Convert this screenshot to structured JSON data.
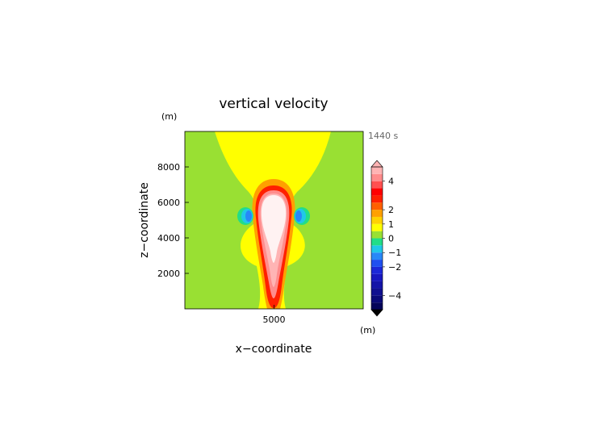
{
  "chart_data": {
    "type": "heatmap",
    "title": "vertical velocity",
    "xlabel": "x−coordinate",
    "ylabel": "z−coordinate",
    "x_unit": "(m)",
    "y_unit": "(m)",
    "time_label": "1440 s",
    "xlim": [
      0,
      10000
    ],
    "ylim": [
      0,
      10000
    ],
    "x_ticks": [
      {
        "value": 5000,
        "label": "5000"
      }
    ],
    "y_ticks": [
      {
        "value": 2000,
        "label": "2000"
      },
      {
        "value": 4000,
        "label": "4000"
      },
      {
        "value": 6000,
        "label": "6000"
      },
      {
        "value": 8000,
        "label": "8000"
      }
    ],
    "colorbar": {
      "min": -5,
      "max": 5,
      "step": 0.5,
      "extend": "both",
      "tick_values": [
        4,
        2,
        1,
        0,
        -1,
        -2,
        -4
      ],
      "tick_labels": [
        "4",
        "2",
        "1",
        "0",
        "−1",
        "−2",
        "−4"
      ]
    }
  },
  "colors": {
    "neutral_green": "#99e033",
    "plume_core": "#fff2f2",
    "levels": [
      {
        "from": -5.0,
        "to": -4.5,
        "color": "#04045a"
      },
      {
        "from": -4.5,
        "to": -4.0,
        "color": "#0a0a78"
      },
      {
        "from": -4.0,
        "to": -3.5,
        "color": "#101090"
      },
      {
        "from": -3.5,
        "to": -3.0,
        "color": "#1414a8"
      },
      {
        "from": -3.0,
        "to": -2.5,
        "color": "#1818c0"
      },
      {
        "from": -2.5,
        "to": -2.0,
        "color": "#1c28d8"
      },
      {
        "from": -2.0,
        "to": -1.5,
        "color": "#2050f0"
      },
      {
        "from": -1.5,
        "to": -1.0,
        "color": "#2888f8"
      },
      {
        "from": -1.0,
        "to": -0.5,
        "color": "#20c8e8"
      },
      {
        "from": -0.5,
        "to": 0.0,
        "color": "#22dd88"
      },
      {
        "from": 0.0,
        "to": 0.5,
        "color": "#99e033"
      },
      {
        "from": 0.5,
        "to": 1.0,
        "color": "#ffff00"
      },
      {
        "from": 1.0,
        "to": 1.5,
        "color": "#ffd200"
      },
      {
        "from": 1.5,
        "to": 2.0,
        "color": "#ffa000"
      },
      {
        "from": 2.0,
        "to": 2.5,
        "color": "#ff6000"
      },
      {
        "from": 2.5,
        "to": 3.0,
        "color": "#ff2000"
      },
      {
        "from": 3.0,
        "to": 3.5,
        "color": "#ff0000"
      },
      {
        "from": 3.5,
        "to": 4.0,
        "color": "#ff5050"
      },
      {
        "from": 4.0,
        "to": 4.5,
        "color": "#ff8c8c"
      },
      {
        "from": 4.5,
        "to": 5.0,
        "color": "#ffb4b4"
      }
    ]
  }
}
